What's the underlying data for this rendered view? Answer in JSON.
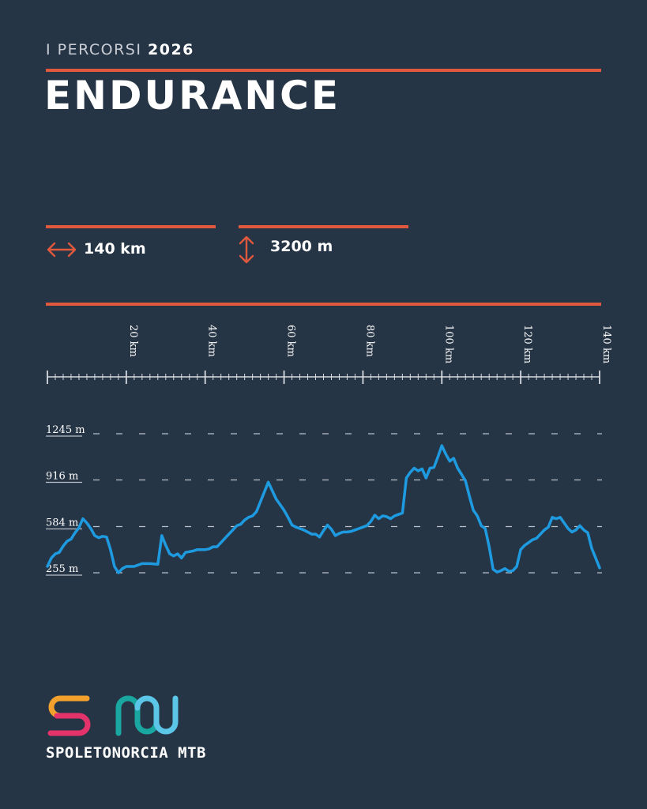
{
  "header": {
    "kicker": "I PERCORSI",
    "year": "2026",
    "title": "ENDURANCE"
  },
  "stats": {
    "distance": "140 km",
    "elevation_gain": "3200 m"
  },
  "icons": {
    "distance": "horizontal-double-arrow-icon",
    "elevation": "vertical-double-arrow-icon"
  },
  "colors": {
    "background": "#263545",
    "accent": "#e0583d",
    "profile_line": "#1e9be0",
    "text": "#ffffff"
  },
  "brand": {
    "name": "SPOLETONORCIA MTB"
  },
  "chart_data": {
    "type": "line",
    "title": "",
    "xlabel": "",
    "ylabel": "",
    "x_ticks": [
      "20 km",
      "40 km",
      "60 km",
      "80 km",
      "100 km",
      "120 km",
      "140 km"
    ],
    "x_tick_values": [
      20,
      40,
      60,
      80,
      100,
      120,
      140
    ],
    "y_ticks": [
      "1245 m",
      "916 m",
      "584 m",
      "255 m"
    ],
    "y_tick_values": [
      1245,
      916,
      584,
      255
    ],
    "xlim": [
      0,
      140
    ],
    "ylim": [
      255,
      1245
    ],
    "grid": "dashed horizontal",
    "series": [
      {
        "values": [
          [
            0,
            300
          ],
          [
            1,
            360
          ],
          [
            2,
            390
          ],
          [
            3,
            400
          ],
          [
            4,
            445
          ],
          [
            5,
            480
          ],
          [
            6,
            495
          ],
          [
            7,
            540
          ],
          [
            8,
            575
          ],
          [
            9,
            640
          ],
          [
            10,
            610
          ],
          [
            11,
            570
          ],
          [
            12,
            520
          ],
          [
            13,
            505
          ],
          [
            14,
            515
          ],
          [
            15,
            510
          ],
          [
            16,
            420
          ],
          [
            17,
            300
          ],
          [
            18,
            255
          ],
          [
            19,
            285
          ],
          [
            20,
            300
          ],
          [
            22,
            300
          ],
          [
            24,
            320
          ],
          [
            26,
            320
          ],
          [
            28,
            315
          ],
          [
            29,
            520
          ],
          [
            30,
            450
          ],
          [
            31,
            390
          ],
          [
            32,
            375
          ],
          [
            33,
            390
          ],
          [
            34,
            360
          ],
          [
            35,
            400
          ],
          [
            36,
            405
          ],
          [
            37,
            410
          ],
          [
            38,
            420
          ],
          [
            40,
            420
          ],
          [
            41,
            425
          ],
          [
            42,
            440
          ],
          [
            43,
            440
          ],
          [
            44,
            470
          ],
          [
            45,
            500
          ],
          [
            46,
            530
          ],
          [
            47,
            560
          ],
          [
            48,
            590
          ],
          [
            49,
            600
          ],
          [
            50,
            630
          ],
          [
            51,
            650
          ],
          [
            52,
            660
          ],
          [
            53,
            690
          ],
          [
            54,
            760
          ],
          [
            55,
            830
          ],
          [
            56,
            900
          ],
          [
            57,
            840
          ],
          [
            58,
            780
          ],
          [
            59,
            740
          ],
          [
            60,
            700
          ],
          [
            61,
            650
          ],
          [
            62,
            595
          ],
          [
            63,
            580
          ],
          [
            64,
            570
          ],
          [
            65,
            560
          ],
          [
            66,
            545
          ],
          [
            67,
            530
          ],
          [
            68,
            530
          ],
          [
            69,
            510
          ],
          [
            70,
            555
          ],
          [
            71,
            595
          ],
          [
            72,
            565
          ],
          [
            73,
            520
          ],
          [
            74,
            535
          ],
          [
            75,
            545
          ],
          [
            76,
            545
          ],
          [
            77,
            550
          ],
          [
            78,
            560
          ],
          [
            79,
            570
          ],
          [
            80,
            580
          ],
          [
            81,
            590
          ],
          [
            82,
            620
          ],
          [
            83,
            665
          ],
          [
            84,
            640
          ],
          [
            85,
            660
          ],
          [
            86,
            655
          ],
          [
            87,
            640
          ],
          [
            88,
            660
          ],
          [
            89,
            670
          ],
          [
            90,
            680
          ],
          [
            91,
            930
          ],
          [
            92,
            970
          ],
          [
            93,
            1000
          ],
          [
            94,
            980
          ],
          [
            95,
            995
          ],
          [
            96,
            930
          ],
          [
            97,
            1000
          ],
          [
            98,
            1005
          ],
          [
            99,
            1080
          ],
          [
            100,
            1160
          ],
          [
            101,
            1100
          ],
          [
            102,
            1050
          ],
          [
            103,
            1070
          ],
          [
            104,
            1000
          ],
          [
            105,
            955
          ],
          [
            106,
            910
          ],
          [
            107,
            800
          ],
          [
            108,
            700
          ],
          [
            109,
            660
          ],
          [
            110,
            590
          ],
          [
            111,
            570
          ],
          [
            112,
            440
          ],
          [
            113,
            280
          ],
          [
            114,
            260
          ],
          [
            115,
            270
          ],
          [
            116,
            285
          ],
          [
            117,
            265
          ],
          [
            118,
            270
          ],
          [
            119,
            300
          ],
          [
            120,
            420
          ],
          [
            121,
            450
          ],
          [
            122,
            470
          ],
          [
            123,
            490
          ],
          [
            124,
            500
          ],
          [
            125,
            530
          ],
          [
            126,
            560
          ],
          [
            127,
            580
          ],
          [
            128,
            650
          ],
          [
            129,
            640
          ],
          [
            130,
            650
          ],
          [
            131,
            610
          ],
          [
            132,
            570
          ],
          [
            133,
            545
          ],
          [
            134,
            560
          ],
          [
            135,
            590
          ],
          [
            136,
            560
          ],
          [
            137,
            540
          ],
          [
            138,
            430
          ],
          [
            139,
            360
          ],
          [
            140,
            290
          ]
        ]
      }
    ]
  }
}
